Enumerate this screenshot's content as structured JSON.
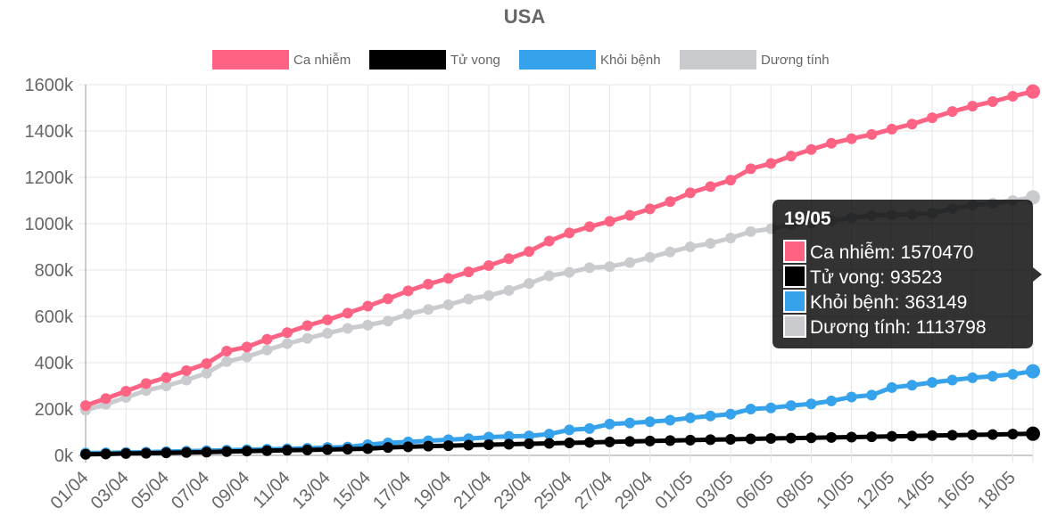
{
  "chart_data": {
    "type": "line",
    "title": "USA",
    "categories": [
      "01/04",
      "02/04",
      "03/04",
      "04/04",
      "05/04",
      "06/04",
      "07/04",
      "08/04",
      "09/04",
      "10/04",
      "11/04",
      "12/04",
      "13/04",
      "14/04",
      "15/04",
      "16/04",
      "17/04",
      "18/04",
      "19/04",
      "20/04",
      "21/04",
      "22/04",
      "23/04",
      "24/04",
      "25/04",
      "26/04",
      "27/04",
      "28/04",
      "29/04",
      "30/04",
      "01/05",
      "02/05",
      "03/05",
      "05/05",
      "06/05",
      "07/05",
      "08/05",
      "09/05",
      "10/05",
      "11/05",
      "12/05",
      "13/05",
      "14/05",
      "15/05",
      "16/05",
      "17/05",
      "18/05",
      "19/05"
    ],
    "xtick_labels": [
      "01/04",
      "03/04",
      "05/04",
      "07/04",
      "09/04",
      "11/04",
      "13/04",
      "15/04",
      "17/04",
      "19/04",
      "21/04",
      "23/04",
      "25/04",
      "27/04",
      "29/04",
      "01/05",
      "03/05",
      "06/05",
      "08/05",
      "10/05",
      "12/05",
      "14/05",
      "16/05",
      "18/05"
    ],
    "ytick_labels": [
      "0k",
      "200k",
      "400k",
      "600k",
      "800k",
      "1000k",
      "1200k",
      "1400k",
      "1600k"
    ],
    "ylim": [
      0,
      1600000
    ],
    "series": [
      {
        "name": "Ca nhiễm",
        "color": "#ff6384",
        "values": [
          215000,
          245000,
          277000,
          310000,
          336000,
          366000,
          396000,
          450000,
          468000,
          501000,
          530000,
          560000,
          585000,
          614000,
          644000,
          676000,
          710000,
          739000,
          764000,
          792000,
          819000,
          849000,
          880000,
          925000,
          960000,
          987000,
          1010000,
          1036000,
          1064000,
          1095000,
          1133000,
          1160000,
          1188000,
          1237000,
          1260000,
          1292000,
          1320000,
          1347000,
          1367000,
          1385000,
          1408000,
          1430000,
          1457000,
          1484000,
          1507000,
          1527000,
          1550000,
          1570470
        ]
      },
      {
        "name": "Tử vong",
        "color": "#000000",
        "values": [
          5000,
          6000,
          8000,
          9000,
          11000,
          12500,
          14000,
          16500,
          18500,
          20000,
          22000,
          23500,
          25000,
          27000,
          29000,
          34000,
          37000,
          40000,
          42000,
          44000,
          46000,
          48000,
          50000,
          52000,
          54000,
          56000,
          58000,
          60000,
          62000,
          64000,
          66000,
          68000,
          69000,
          71000,
          73000,
          74500,
          76000,
          77500,
          79000,
          80500,
          82000,
          83500,
          85500,
          87000,
          88500,
          90000,
          92000,
          93523
        ]
      },
      {
        "name": "Khỏi bệnh",
        "color": "#36a2eb",
        "values": [
          10000,
          11000,
          12500,
          14000,
          16500,
          18500,
          20000,
          22500,
          24500,
          26500,
          28500,
          31000,
          34000,
          36000,
          46000,
          54000,
          58000,
          63000,
          68000,
          72000,
          79000,
          82000,
          84000,
          92000,
          110000,
          116000,
          135000,
          140000,
          145000,
          152000,
          162000,
          170000,
          178000,
          200000,
          205000,
          215000,
          222000,
          235000,
          252000,
          260000,
          293000,
          303000,
          315000,
          325000,
          335000,
          342000,
          350000,
          363149
        ]
      },
      {
        "name": "Dương tính",
        "color": "#c9cbcf",
        "values": [
          195000,
          220000,
          250000,
          280000,
          300000,
          325000,
          355000,
          405000,
          425000,
          455000,
          482000,
          505000,
          527000,
          548000,
          562000,
          580000,
          610000,
          630000,
          650000,
          675000,
          690000,
          712000,
          742000,
          775000,
          790000,
          810000,
          815000,
          832000,
          855000,
          878000,
          900000,
          915000,
          938000,
          966000,
          978000,
          996000,
          1003000,
          1013000,
          1025000,
          1035000,
          1038000,
          1040000,
          1045000,
          1065000,
          1080000,
          1088000,
          1100000,
          1113798
        ]
      }
    ],
    "tooltip": {
      "title": "19/05",
      "lines": [
        "Ca nhiễm: 1570470",
        "Tử vong: 93523",
        "Khỏi bệnh: 363149",
        "Dương tính: 1113798"
      ]
    },
    "legend_position": "top"
  }
}
